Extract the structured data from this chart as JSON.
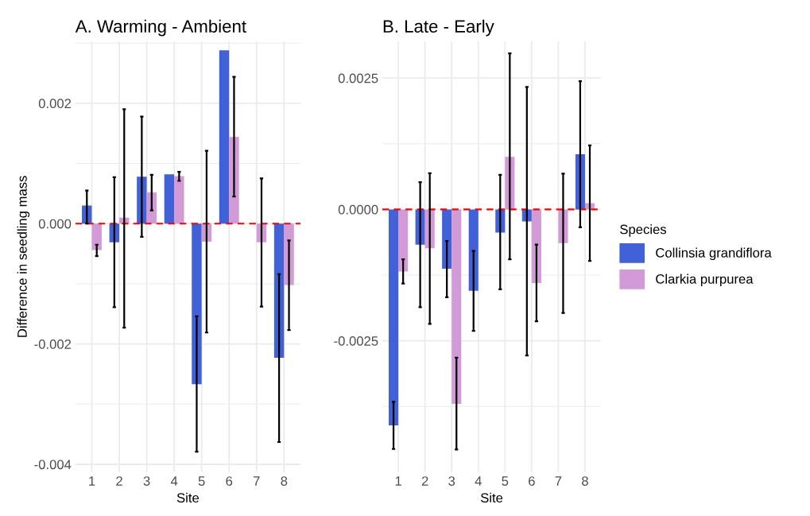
{
  "chart_data": [
    {
      "type": "bar",
      "title": "A. Warming - Ambient",
      "xlabel": "Site",
      "ylabel": "Difference in seedling mass",
      "categories": [
        "1",
        "2",
        "3",
        "4",
        "5",
        "6",
        "7",
        "8"
      ],
      "series": [
        {
          "color": "#4161d8",
          "values": [
            0.0003,
            -0.00031,
            0.00078,
            0.00082,
            -0.00267,
            0.00288,
            null,
            -0.00223
          ],
          "errors": [
            [
              0.0,
              0.00055
            ],
            [
              -0.00139,
              0.00077
            ],
            [
              -0.00022,
              0.00178
            ],
            null,
            [
              -0.00379,
              -0.00154
            ],
            null,
            null,
            [
              -0.00363,
              -0.00084
            ]
          ]
        },
        {
          "color": "#d39ad8",
          "values": [
            -0.00044,
            0.0001,
            0.00052,
            0.00079,
            -0.0003,
            0.00144,
            -0.00031,
            -0.00102
          ],
          "errors": [
            [
              -0.00054,
              -0.00035
            ],
            [
              -0.00173,
              0.0019
            ],
            [
              0.00022,
              0.00081
            ],
            [
              0.00071,
              0.00086
            ],
            [
              -0.00181,
              0.00121
            ],
            [
              0.00045,
              0.00244
            ],
            [
              -0.00138,
              0.00075
            ],
            [
              -0.00177,
              -0.00028
            ]
          ]
        }
      ],
      "ylim": [
        -0.00413,
        0.00303
      ],
      "yticks": [
        {
          "value": -0.004,
          "label": "-0.004"
        },
        {
          "value": -0.002,
          "label": "-0.002"
        },
        {
          "value": 0,
          "label": "0.000"
        },
        {
          "value": 0.002,
          "label": "0.002"
        }
      ],
      "ref_lines": [
        {
          "axis": "y",
          "value": 0,
          "color": "#ff0000",
          "line_style": "dashed"
        }
      ],
      "grid": true
    },
    {
      "type": "bar",
      "title": "B. Late - Early",
      "xlabel": "Site",
      "legend_title": "Species",
      "categories": [
        "1",
        "2",
        "3",
        "4",
        "5",
        "6",
        "7",
        "8"
      ],
      "series": [
        {
          "name": "Collinsia grandiflora",
          "color": "#4161d8",
          "values": [
            -0.00411,
            -0.00067,
            -0.00113,
            -0.00155,
            -0.00044,
            -0.00023,
            null,
            0.00105
          ],
          "errors": [
            [
              -0.00456,
              -0.00366
            ],
            [
              -0.00186,
              0.00052
            ],
            [
              -0.00167,
              -0.0006
            ],
            [
              -0.00231,
              -0.00079
            ],
            [
              -0.00152,
              0.00066
            ],
            [
              -0.00278,
              0.00233
            ],
            null,
            [
              -0.00034,
              0.00244
            ]
          ]
        },
        {
          "name": "Clarkia purpurea",
          "color": "#d39ad8",
          "values": [
            -0.00118,
            -0.00074,
            -0.0037,
            null,
            0.001,
            -0.0014,
            -0.00064,
            0.00012
          ],
          "errors": [
            [
              -0.00141,
              -0.00095
            ],
            [
              -0.00218,
              0.00069
            ],
            [
              -0.00457,
              -0.00282
            ],
            null,
            [
              -0.00095,
              0.00297
            ],
            [
              -0.00213,
              -0.00067
            ],
            [
              -0.00197,
              0.00068
            ],
            [
              -0.00098,
              0.00122
            ]
          ]
        }
      ],
      "ylim": [
        -0.005,
        0.0032
      ],
      "yticks": [
        {
          "value": -0.0025,
          "label": "-0.0025"
        },
        {
          "value": 0,
          "label": "0.0000"
        },
        {
          "value": 0.0025,
          "label": "0.0025"
        }
      ],
      "ref_lines": [
        {
          "axis": "y",
          "value": 0,
          "color": "#ff0000",
          "line_style": "dashed"
        }
      ],
      "grid": true,
      "legend": "right"
    }
  ]
}
